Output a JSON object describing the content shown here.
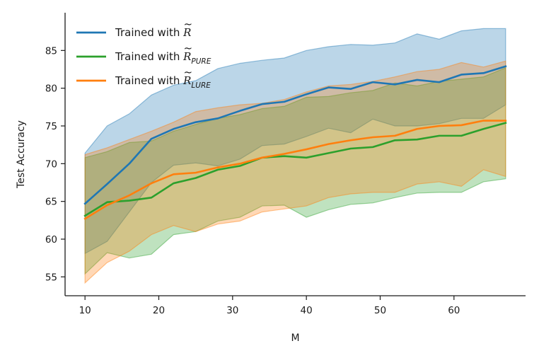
{
  "chart_data": {
    "type": "line",
    "title": "",
    "xlabel": "M",
    "ylabel": "Test Accuracy",
    "xlim": [
      7.3,
      69.7
    ],
    "ylim": [
      52.5,
      90
    ],
    "xticks": [
      10,
      20,
      30,
      40,
      50,
      60
    ],
    "yticks": [
      55,
      60,
      65,
      70,
      75,
      80,
      85
    ],
    "grid": false,
    "legend_position": "top-left",
    "x": [
      10,
      13,
      16,
      19,
      22,
      25,
      28,
      31,
      34,
      37,
      40,
      43,
      46,
      49,
      52,
      55,
      58,
      61,
      64,
      67
    ],
    "series": [
      {
        "name": "Trained with R̃",
        "legend_prefix": "Trained with ",
        "legend_symbol": "R",
        "legend_tilde": "~",
        "legend_sub": "",
        "color": "#1f77b4",
        "values": [
          64.7,
          67.3,
          70.0,
          73.3,
          74.6,
          75.5,
          76.0,
          77.0,
          77.9,
          78.2,
          79.2,
          80.1,
          79.9,
          80.8,
          80.5,
          81.1,
          80.8,
          81.8,
          82.0,
          82.9
        ],
        "upper": [
          71.4,
          75.0,
          76.6,
          79.1,
          80.4,
          81.0,
          82.6,
          83.3,
          83.7,
          84.0,
          85.0,
          85.5,
          85.8,
          85.7,
          86.0,
          87.2,
          86.5,
          87.6,
          87.9,
          87.9
        ],
        "lower": [
          58.1,
          59.7,
          63.6,
          67.5,
          69.8,
          70.1,
          69.7,
          70.6,
          72.4,
          72.6,
          73.6,
          74.7,
          74.1,
          75.9,
          75.0,
          75.0,
          75.3,
          76.0,
          76.0,
          77.8
        ]
      },
      {
        "name": "Trained with R̃_PURE",
        "legend_prefix": "Trained with ",
        "legend_symbol": "R",
        "legend_tilde": "~",
        "legend_sub": "PURE",
        "color": "#2ca02c",
        "values": [
          63.1,
          64.9,
          65.1,
          65.5,
          67.4,
          68.1,
          69.2,
          69.7,
          70.8,
          71.0,
          70.8,
          71.4,
          72.0,
          72.2,
          73.1,
          73.2,
          73.7,
          73.7,
          74.6,
          75.4
        ],
        "upper": [
          70.8,
          71.6,
          72.8,
          73.0,
          74.3,
          75.2,
          76.0,
          76.5,
          77.3,
          77.6,
          78.8,
          78.9,
          79.4,
          79.7,
          80.7,
          80.3,
          80.9,
          81.2,
          81.5,
          82.7
        ],
        "lower": [
          55.4,
          58.2,
          57.5,
          58.0,
          60.6,
          61.0,
          62.4,
          62.9,
          64.4,
          64.5,
          62.9,
          63.9,
          64.6,
          64.8,
          65.5,
          66.1,
          66.2,
          66.2,
          67.6,
          68.0
        ]
      },
      {
        "name": "Trained with R̃_LURE",
        "legend_prefix": "Trained with ",
        "legend_symbol": "R",
        "legend_tilde": "~",
        "legend_sub": "LURE",
        "color": "#ff7f0e",
        "values": [
          62.7,
          64.5,
          65.8,
          67.4,
          68.6,
          68.8,
          69.5,
          70.0,
          70.8,
          71.3,
          71.9,
          72.6,
          73.1,
          73.5,
          73.7,
          74.6,
          75.0,
          75.1,
          75.7,
          75.7
        ],
        "upper": [
          71.2,
          72.1,
          73.2,
          74.3,
          75.5,
          76.9,
          77.4,
          77.8,
          78.0,
          78.5,
          79.5,
          80.3,
          80.5,
          80.9,
          81.5,
          82.2,
          82.5,
          83.4,
          82.8,
          83.6
        ],
        "lower": [
          54.2,
          56.9,
          58.4,
          60.6,
          61.8,
          61.0,
          62.0,
          62.4,
          63.6,
          64.0,
          64.4,
          65.5,
          66.0,
          66.2,
          66.2,
          67.3,
          67.6,
          67.0,
          69.2,
          68.3
        ]
      }
    ]
  }
}
